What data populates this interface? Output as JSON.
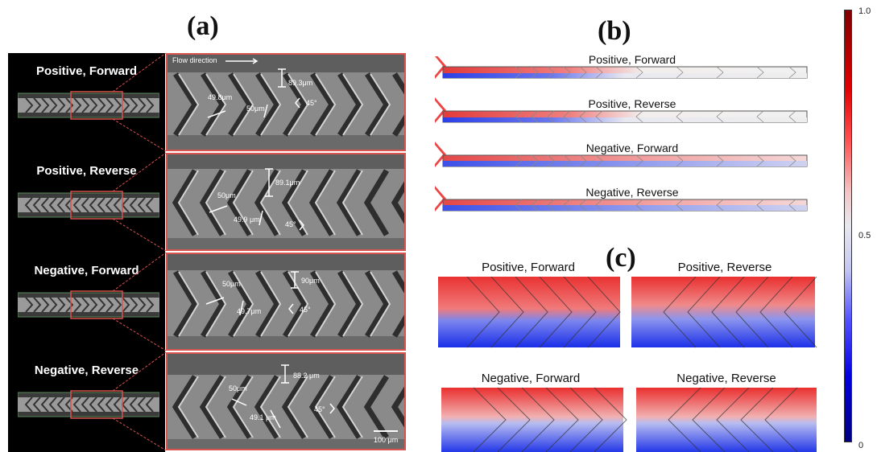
{
  "panel_a": {
    "letter": "(a)",
    "labels": [
      "Positive, Forward",
      "Positive, Reverse",
      "Negative, Forward",
      "Negative, Reverse"
    ],
    "flow_direction": "Flow direction",
    "sem": [
      {
        "m1": "49.8μm",
        "m2": "50μm",
        "m3": "89.3μm",
        "angle": "45°"
      },
      {
        "m1": "50μm",
        "m2": "49.9 μm",
        "m3": "89.1μm",
        "angle": "45°"
      },
      {
        "m1": "50μm",
        "m2": "49.7μm",
        "m3": "90μm",
        "angle": "45°"
      },
      {
        "m1": "50μm",
        "m2": "49.1 μm",
        "m3": "88.2 μm",
        "angle": "45°"
      }
    ],
    "scale_bar": "100 μm"
  },
  "panel_b": {
    "letter": "(b)",
    "labels": [
      "Positive, Forward",
      "Positive, Reverse",
      "Negative, Forward",
      "Negative, Reverse"
    ]
  },
  "panel_c": {
    "letter": "(c)",
    "labels": [
      "Positive, Forward",
      "Positive, Reverse",
      "Negative, Forward",
      "Negative, Reverse"
    ]
  },
  "colorbar": {
    "ticks": [
      "1.0",
      "0.5",
      "0"
    ],
    "colors": {
      "high": "#7f0000",
      "mid": "#e8e8f0",
      "low": "#00007f"
    }
  }
}
